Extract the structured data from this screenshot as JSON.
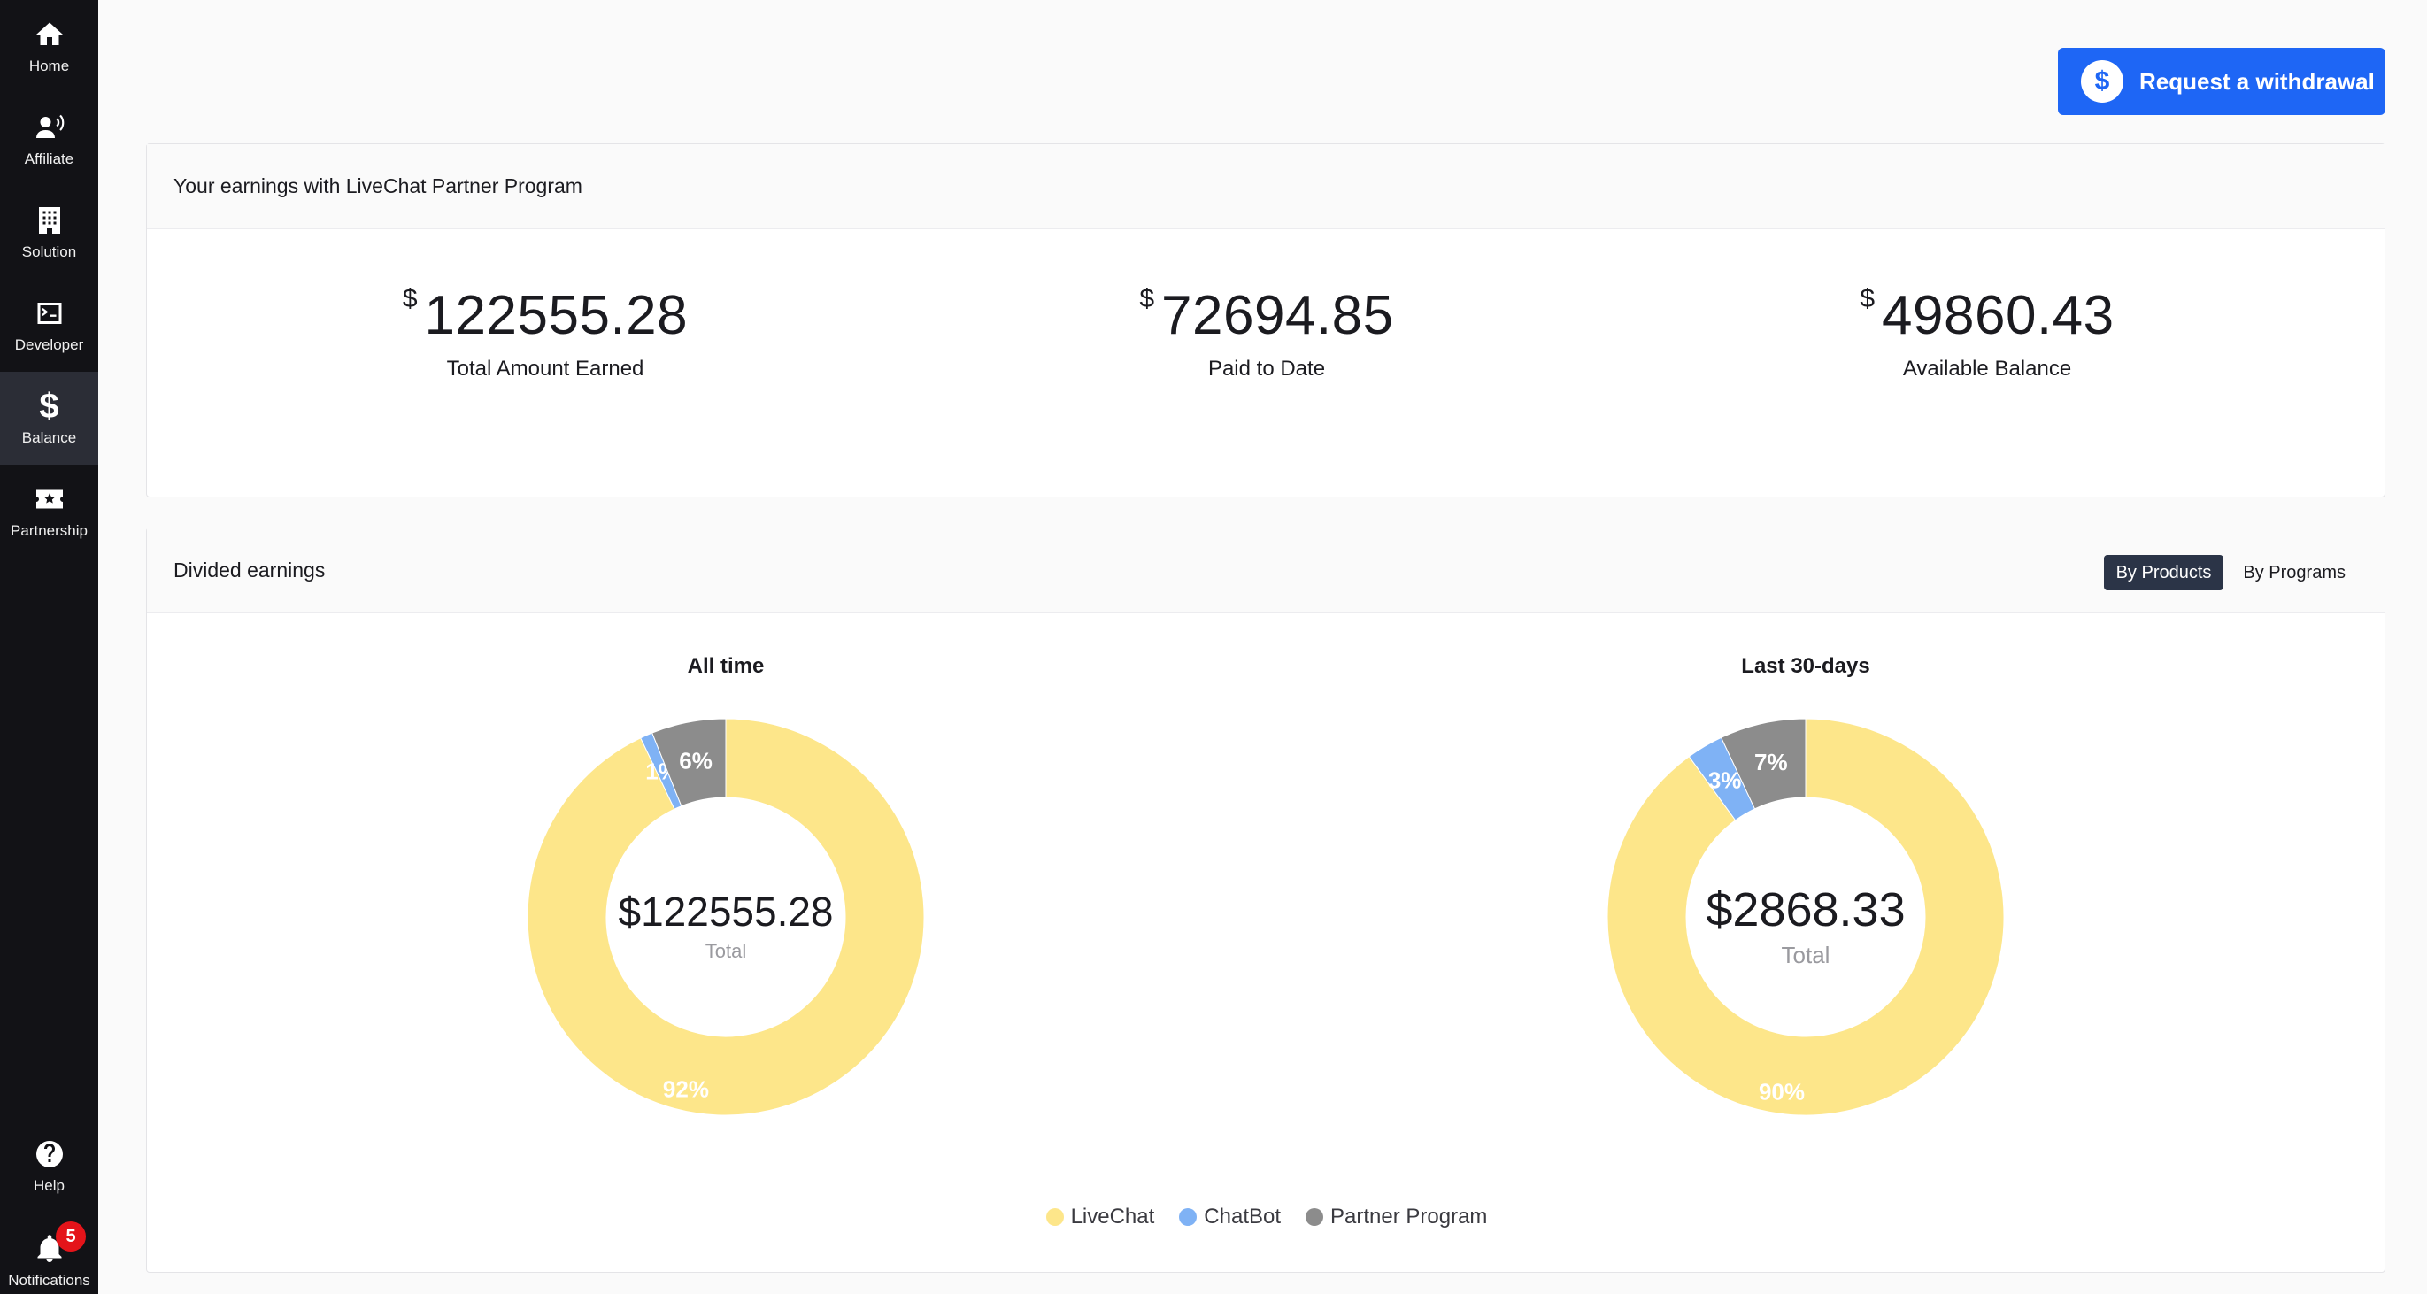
{
  "sidebar": {
    "items": [
      {
        "label": "Home",
        "icon": "home-icon"
      },
      {
        "label": "Affiliate",
        "icon": "affiliate-icon"
      },
      {
        "label": "Solution",
        "icon": "building-icon"
      },
      {
        "label": "Developer",
        "icon": "terminal-icon"
      },
      {
        "label": "Balance",
        "icon": "dollar-icon",
        "active": true
      },
      {
        "label": "Partnership",
        "icon": "ticket-icon"
      }
    ],
    "bottom": [
      {
        "label": "Help",
        "icon": "help-icon"
      },
      {
        "label": "Notifications",
        "icon": "bell-icon",
        "badge": "5"
      }
    ]
  },
  "header": {
    "withdraw_label": "Request a withdrawal",
    "withdraw_icon": "$"
  },
  "earnings": {
    "title": "Your earnings with LiveChat Partner Program",
    "currency": "$",
    "stats": [
      {
        "value": "122555.28",
        "caption": "Total Amount Earned"
      },
      {
        "value": "72694.85",
        "caption": "Paid to Date"
      },
      {
        "value": "49860.43",
        "caption": "Available Balance"
      }
    ]
  },
  "divided": {
    "title": "Divided earnings",
    "toggle": {
      "by_products": "By Products",
      "by_programs": "By Programs",
      "active": "by_products"
    }
  },
  "colors": {
    "livechat": "#fde68a",
    "chatbot": "#7fb2f5",
    "partner": "#8c8c8c",
    "accent": "#1e66f5"
  },
  "chart_data": [
    {
      "type": "pie",
      "title": "All time",
      "center_value": "$122555.28",
      "center_label": "Total",
      "categories": [
        "LiveChat",
        "ChatBot",
        "Partner Program"
      ],
      "values": [
        92,
        1,
        6
      ],
      "labels": [
        "92%",
        "1%",
        "6%"
      ]
    },
    {
      "type": "pie",
      "title": "Last 30-days",
      "center_value": "$2868.33",
      "center_label": "Total",
      "categories": [
        "LiveChat",
        "ChatBot",
        "Partner Program"
      ],
      "values": [
        90,
        3,
        7
      ],
      "labels": [
        "90%",
        "3%",
        "7%"
      ]
    }
  ],
  "legend": [
    {
      "label": "LiveChat",
      "color": "#fde68a"
    },
    {
      "label": "ChatBot",
      "color": "#7fb2f5"
    },
    {
      "label": "Partner Program",
      "color": "#8c8c8c"
    }
  ]
}
